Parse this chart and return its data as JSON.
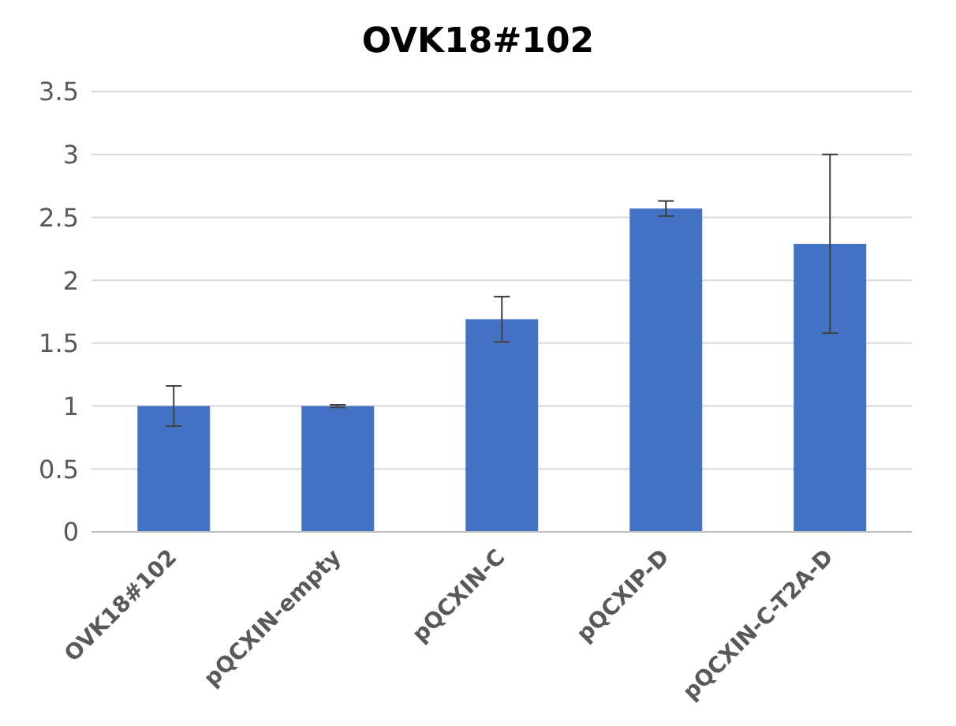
{
  "chart_data": {
    "type": "bar",
    "title": "OVK18#102",
    "categories": [
      "OVK18#102",
      "pQCXIN-empty",
      "pQCXIN-C",
      "pQCXIP-D",
      "pQCXIN-C-T2A-D"
    ],
    "values": [
      1.0,
      1.0,
      1.69,
      2.57,
      2.29
    ],
    "errors": [
      0.16,
      0.01,
      0.18,
      0.06,
      0.71
    ],
    "color": "#4472c4",
    "ylim": [
      0,
      3.5
    ],
    "yticks": [
      0,
      0.5,
      1,
      1.5,
      2,
      2.5,
      3,
      3.5
    ],
    "grid": "y"
  }
}
